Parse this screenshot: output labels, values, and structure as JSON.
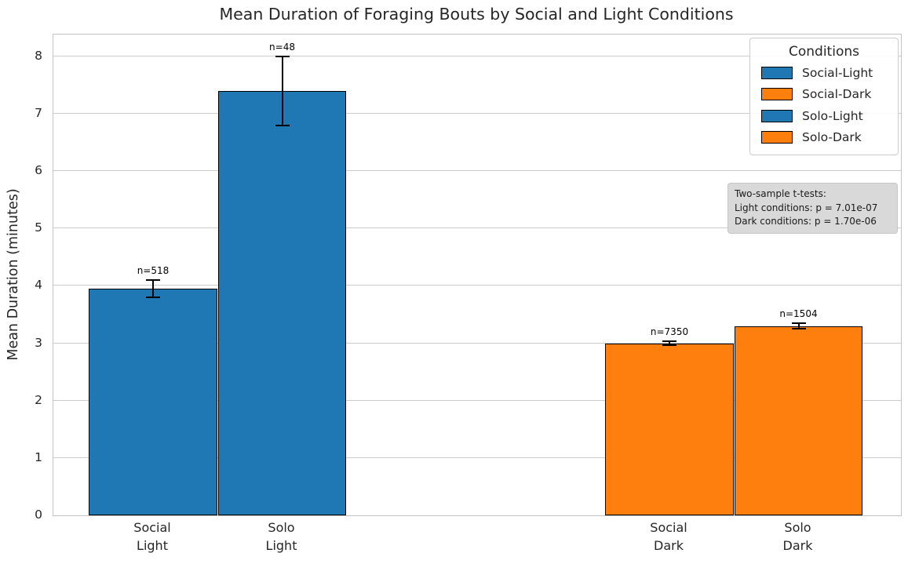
{
  "chart_data": {
    "type": "bar",
    "title": "Mean Duration of Foraging Bouts by Social and Light Conditions",
    "xlabel": "",
    "ylabel": "Mean Duration (minutes)",
    "ylim": [
      0,
      8.38
    ],
    "y_ticks": [
      0,
      1,
      2,
      3,
      4,
      5,
      6,
      7,
      8
    ],
    "grid": "horizontal",
    "bars": [
      {
        "condition": "Social-Light",
        "tick_lines": [
          "Social",
          "Light"
        ],
        "value": 3.95,
        "error": 0.15,
        "n_label": "n=518",
        "color": "#1f77b4",
        "hatched": true
      },
      {
        "condition": "Solo-Light",
        "tick_lines": [
          "Solo",
          "Light"
        ],
        "value": 7.4,
        "error": 0.6,
        "n_label": "n=48",
        "color": "#1f77b4",
        "hatched": false
      },
      {
        "condition": "Social-Dark",
        "tick_lines": [
          "Social",
          "Dark"
        ],
        "value": 3.0,
        "error": 0.03,
        "n_label": "n=7350",
        "color": "#ff7f0e",
        "hatched": true
      },
      {
        "condition": "Solo-Dark",
        "tick_lines": [
          "Solo",
          "Dark"
        ],
        "value": 3.3,
        "error": 0.05,
        "n_label": "n=1504",
        "color": "#ff7f0e",
        "hatched": false
      }
    ],
    "legend": {
      "title": "Conditions",
      "position": "upper right",
      "entries": [
        {
          "label": "Social-Light",
          "color": "#1f77b4",
          "hatched": true
        },
        {
          "label": "Social-Dark",
          "color": "#ff7f0e",
          "hatched": true
        },
        {
          "label": "Solo-Light",
          "color": "#1f77b4",
          "hatched": false
        },
        {
          "label": "Solo-Dark",
          "color": "#ff7f0e",
          "hatched": false
        }
      ]
    },
    "annotation": {
      "lines": [
        "Two-sample t-tests:",
        "Light conditions: p = 7.01e-07",
        "Dark conditions: p = 1.70e-06"
      ]
    },
    "colors": {
      "blue": "#1f77b4",
      "orange": "#ff7f0e",
      "grid": "#cccccc",
      "annotation_bg": "#d9d9d9"
    }
  }
}
